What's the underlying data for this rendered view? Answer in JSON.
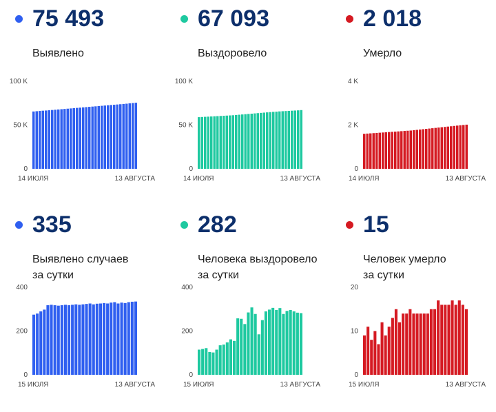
{
  "panels": [
    {
      "value": "75 493",
      "label": "Выявлено",
      "label2": "",
      "color": "#2f5ff0"
    },
    {
      "value": "67 093",
      "label": "Выздоровело",
      "label2": "",
      "color": "#1ec9a0"
    },
    {
      "value": "2 018",
      "label": "Умерло",
      "label2": "",
      "color": "#d51a22"
    },
    {
      "value": "335",
      "label": "Выявлено случаев",
      "label2": "за сутки",
      "color": "#2f5ff0"
    },
    {
      "value": "282",
      "label": "Человека выздоровело",
      "label2": "за сутки",
      "color": "#1ec9a0"
    },
    {
      "value": "15",
      "label": "Человек умерло",
      "label2": "за сутки",
      "color": "#d51a22"
    }
  ],
  "chart_data": [
    {
      "type": "bar",
      "color": "#2f5ff0",
      "ylim": [
        0,
        100000
      ],
      "ytick_labels": [
        "0",
        "50 K",
        "100 K"
      ],
      "ytick_values": [
        0,
        50000,
        100000
      ],
      "x_start_label": "14 ИЮЛЯ",
      "x_end_label": "13 АВГУСТА",
      "values": [
        65500,
        65800,
        66100,
        66400,
        66600,
        66900,
        67200,
        67500,
        67800,
        68100,
        68400,
        68700,
        69000,
        69300,
        69600,
        69900,
        70200,
        70500,
        70800,
        71100,
        71400,
        71700,
        72000,
        72300,
        72600,
        72900,
        73200,
        73500,
        73800,
        74100,
        74400,
        74800,
        75150,
        75493
      ]
    },
    {
      "type": "bar",
      "color": "#1ec9a0",
      "ylim": [
        0,
        100000
      ],
      "ytick_labels": [
        "0",
        "50 K",
        "100 K"
      ],
      "ytick_values": [
        0,
        50000,
        100000
      ],
      "x_start_label": "14 ИЮЛЯ",
      "x_end_label": "13 АВГУСТА",
      "values": [
        59000,
        59200,
        59400,
        59600,
        59800,
        60000,
        60200,
        60400,
        60600,
        60800,
        61000,
        61200,
        61500,
        61800,
        62100,
        62400,
        62700,
        63000,
        63300,
        63600,
        63900,
        64200,
        64500,
        64800,
        65100,
        65300,
        65600,
        65800,
        66000,
        66200,
        66400,
        66600,
        66811,
        67093
      ]
    },
    {
      "type": "bar",
      "color": "#d51a22",
      "ylim": [
        0,
        4000
      ],
      "ytick_labels": [
        "0",
        "2 K",
        "4 K"
      ],
      "ytick_values": [
        0,
        2000,
        4000
      ],
      "x_start_label": "14 ИЮЛЯ",
      "x_end_label": "13 АВГУСТА",
      "values": [
        1600,
        1610,
        1620,
        1630,
        1640,
        1650,
        1660,
        1670,
        1680,
        1690,
        1700,
        1710,
        1720,
        1730,
        1740,
        1750,
        1765,
        1780,
        1795,
        1810,
        1825,
        1840,
        1855,
        1870,
        1885,
        1900,
        1915,
        1930,
        1945,
        1960,
        1975,
        1990,
        2003,
        2018
      ]
    },
    {
      "type": "bar",
      "color": "#2f5ff0",
      "ylim": [
        0,
        400
      ],
      "ytick_labels": [
        "0",
        "200",
        "400"
      ],
      "ytick_values": [
        0,
        200,
        400
      ],
      "x_start_label": "15 ИЮЛЯ",
      "x_end_label": "13 АВГУСТА",
      "values": [
        275,
        280,
        290,
        298,
        318,
        320,
        318,
        316,
        318,
        320,
        318,
        320,
        322,
        320,
        322,
        324,
        326,
        322,
        325,
        326,
        328,
        326,
        330,
        332,
        326,
        330,
        328,
        332,
        334,
        335
      ]
    },
    {
      "type": "bar",
      "color": "#1ec9a0",
      "ylim": [
        0,
        400
      ],
      "ytick_labels": [
        "0",
        "200",
        "400"
      ],
      "ytick_values": [
        0,
        200,
        400
      ],
      "x_start_label": "15 ИЮЛЯ",
      "x_end_label": "13 АВГУСТА",
      "values": [
        115,
        118,
        122,
        104,
        102,
        115,
        135,
        138,
        148,
        162,
        155,
        258,
        256,
        232,
        285,
        308,
        278,
        185,
        250,
        290,
        298,
        306,
        296,
        305,
        278,
        292,
        296,
        290,
        284,
        282
      ]
    },
    {
      "type": "bar",
      "color": "#d51a22",
      "ylim": [
        0,
        20
      ],
      "ytick_labels": [
        "0",
        "10",
        "20"
      ],
      "ytick_values": [
        0,
        10,
        20
      ],
      "x_start_label": "15 ИЮЛЯ",
      "x_end_label": "13 АВГУСТА",
      "values": [
        9,
        11,
        8,
        10,
        7,
        12,
        9,
        11,
        13,
        15,
        12,
        14,
        14,
        15,
        14,
        14,
        14,
        14,
        14,
        15,
        15,
        17,
        16,
        16,
        16,
        17,
        16,
        17,
        16,
        15
      ]
    }
  ]
}
